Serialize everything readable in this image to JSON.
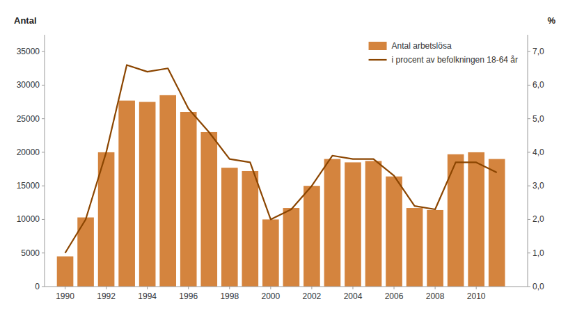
{
  "chart_data": {
    "type": "bar",
    "y_label": "Antal",
    "y2_label": "%",
    "x": [
      1990,
      1991,
      1992,
      1993,
      1994,
      1995,
      1996,
      1997,
      1998,
      1999,
      2000,
      2001,
      2002,
      2003,
      2004,
      2005,
      2006,
      2007,
      2008,
      2009,
      2010,
      2011
    ],
    "series": [
      {
        "name": "Antal arbetslösa",
        "type": "bar",
        "color": "#D4843E",
        "values": [
          4500,
          10300,
          20000,
          27700,
          27500,
          28500,
          26000,
          23000,
          17700,
          17200,
          10000,
          11700,
          15000,
          19000,
          18500,
          18700,
          16400,
          11700,
          11400,
          19700,
          20000,
          19000
        ]
      },
      {
        "name": "i procent av befolkningen 18-64 år",
        "type": "line",
        "color": "#8B4500",
        "axis": "y2",
        "values": [
          1.0,
          2.0,
          4.0,
          6.6,
          6.4,
          6.5,
          5.3,
          4.6,
          3.8,
          3.7,
          2.0,
          2.3,
          3.0,
          3.9,
          3.8,
          3.8,
          3.3,
          2.4,
          2.3,
          3.7,
          3.7,
          3.4
        ]
      }
    ],
    "xlim": [
      1989.0,
      2012.5
    ],
    "xticks": [
      1990,
      1992,
      1994,
      1996,
      1998,
      2000,
      2002,
      2004,
      2006,
      2008,
      2010
    ],
    "ylim": [
      0,
      37500
    ],
    "yticks": [
      0,
      5000,
      10000,
      15000,
      20000,
      25000,
      30000,
      35000
    ],
    "y2lim": [
      0,
      7.5
    ],
    "y2ticks": [
      {
        "value": 0.0,
        "label": "0,0"
      },
      {
        "value": 1.0,
        "label": "1,0"
      },
      {
        "value": 2.0,
        "label": "2,0"
      },
      {
        "value": 3.0,
        "label": "3,0"
      },
      {
        "value": 4.0,
        "label": "4,0"
      },
      {
        "value": 5.0,
        "label": "5,0"
      },
      {
        "value": 6.0,
        "label": "6,0"
      },
      {
        "value": 7.0,
        "label": "7,0"
      }
    ],
    "grid": false,
    "legend": "upper-right"
  }
}
